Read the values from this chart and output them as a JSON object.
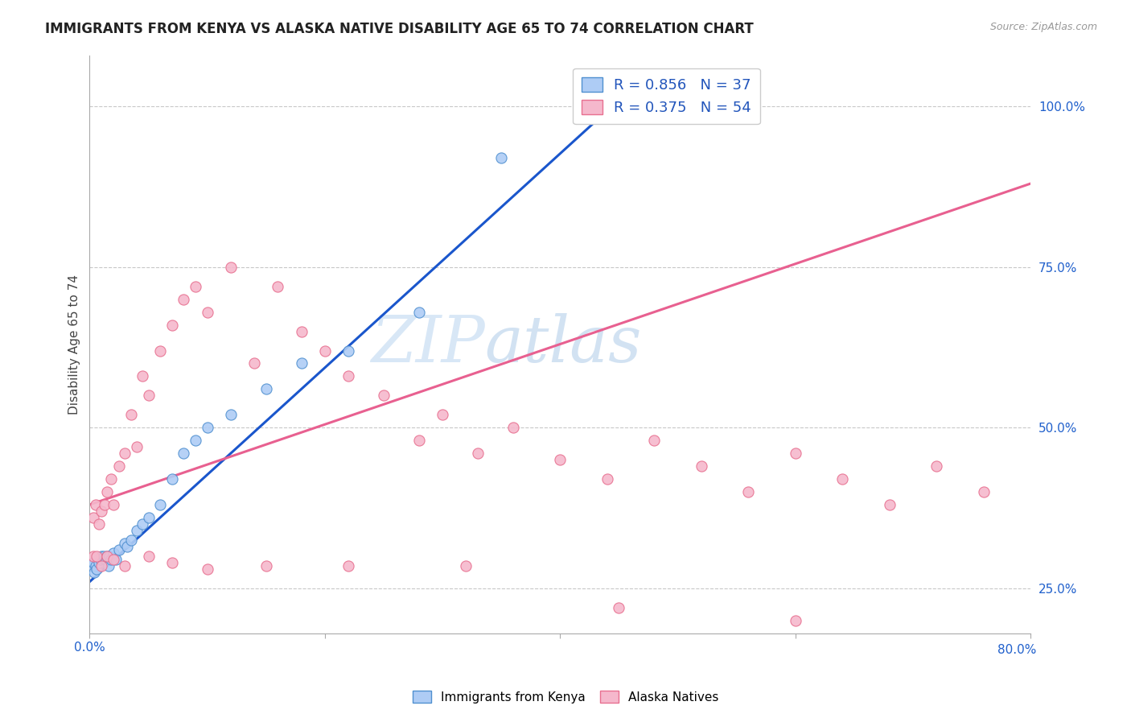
{
  "title": "IMMIGRANTS FROM KENYA VS ALASKA NATIVE DISABILITY AGE 65 TO 74 CORRELATION CHART",
  "source": "Source: ZipAtlas.com",
  "ylabel": "Disability Age 65 to 74",
  "xlim": [
    0.0,
    0.08
  ],
  "ylim": [
    0.18,
    1.08
  ],
  "x_tick_labels_positions": [
    0.0,
    0.02,
    0.04,
    0.06,
    0.08
  ],
  "x_tick_labels": [
    "0.0%",
    "",
    "",
    "",
    ""
  ],
  "y_tick_labels_right": [
    "25.0%",
    "50.0%",
    "75.0%",
    "100.0%"
  ],
  "y_tick_positions_right": [
    0.25,
    0.5,
    0.75,
    1.0
  ],
  "watermark_zip": "ZIP",
  "watermark_atlas": "atlas",
  "blue_R": 0.856,
  "blue_N": 37,
  "pink_R": 0.375,
  "pink_N": 54,
  "blue_color": "#aeccf5",
  "blue_edge_color": "#5090d0",
  "pink_color": "#f5b8cc",
  "pink_edge_color": "#e87090",
  "blue_line_color": "#1a56cc",
  "pink_line_color": "#e86090",
  "legend_label_blue": "Immigrants from Kenya",
  "legend_label_pink": "Alaska Natives",
  "blue_scatter_x": [
    0.0002,
    0.0003,
    0.0004,
    0.0005,
    0.0006,
    0.0007,
    0.0008,
    0.0009,
    0.001,
    0.0012,
    0.0013,
    0.0014,
    0.0015,
    0.0016,
    0.0017,
    0.0018,
    0.002,
    0.0022,
    0.0025,
    0.003,
    0.0032,
    0.0035,
    0.004,
    0.0045,
    0.005,
    0.006,
    0.007,
    0.008,
    0.009,
    0.01,
    0.012,
    0.015,
    0.018,
    0.022,
    0.028,
    0.035,
    0.042
  ],
  "blue_scatter_y": [
    0.285,
    0.29,
    0.275,
    0.285,
    0.28,
    0.295,
    0.29,
    0.295,
    0.3,
    0.3,
    0.295,
    0.295,
    0.3,
    0.285,
    0.3,
    0.295,
    0.305,
    0.295,
    0.31,
    0.32,
    0.315,
    0.325,
    0.34,
    0.35,
    0.36,
    0.38,
    0.42,
    0.46,
    0.48,
    0.5,
    0.52,
    0.56,
    0.6,
    0.62,
    0.68,
    0.92,
    0.99
  ],
  "pink_scatter_x": [
    0.0003,
    0.0005,
    0.0008,
    0.001,
    0.0013,
    0.0015,
    0.0018,
    0.002,
    0.0025,
    0.003,
    0.0035,
    0.004,
    0.0045,
    0.005,
    0.006,
    0.007,
    0.008,
    0.009,
    0.01,
    0.012,
    0.014,
    0.016,
    0.018,
    0.02,
    0.022,
    0.025,
    0.028,
    0.03,
    0.033,
    0.036,
    0.04,
    0.044,
    0.048,
    0.052,
    0.056,
    0.06,
    0.064,
    0.068,
    0.072,
    0.076,
    0.0003,
    0.0006,
    0.001,
    0.0015,
    0.002,
    0.003,
    0.005,
    0.007,
    0.01,
    0.015,
    0.022,
    0.032,
    0.045,
    0.06
  ],
  "pink_scatter_y": [
    0.36,
    0.38,
    0.35,
    0.37,
    0.38,
    0.4,
    0.42,
    0.38,
    0.44,
    0.46,
    0.52,
    0.47,
    0.58,
    0.55,
    0.62,
    0.66,
    0.7,
    0.72,
    0.68,
    0.75,
    0.6,
    0.72,
    0.65,
    0.62,
    0.58,
    0.55,
    0.48,
    0.52,
    0.46,
    0.5,
    0.45,
    0.42,
    0.48,
    0.44,
    0.4,
    0.46,
    0.42,
    0.38,
    0.44,
    0.4,
    0.3,
    0.3,
    0.285,
    0.3,
    0.295,
    0.285,
    0.3,
    0.29,
    0.28,
    0.285,
    0.285,
    0.285,
    0.22,
    0.2
  ],
  "blue_trend_x": [
    0.0,
    0.045
  ],
  "blue_trend_y": [
    0.26,
    1.01
  ],
  "pink_trend_x": [
    0.0,
    0.08
  ],
  "pink_trend_y": [
    0.38,
    0.88
  ],
  "grid_color": "#c8c8c8",
  "bg_color": "#ffffff",
  "title_fontsize": 12,
  "label_fontsize": 11,
  "tick_fontsize": 11
}
